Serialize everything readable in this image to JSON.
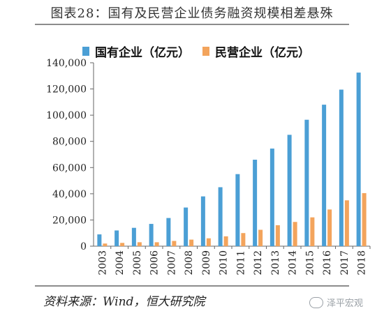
{
  "header": {
    "title": "图表28：国有及民营企业债务融资规模相差悬殊"
  },
  "footer": {
    "source": "资料来源：Wind，恒大研究院",
    "watermark": "泽平宏观"
  },
  "chart_data": {
    "type": "bar",
    "categories": [
      "2003",
      "2004",
      "2005",
      "2006",
      "2007",
      "2008",
      "2009",
      "2010",
      "2011",
      "2012",
      "2013",
      "2014",
      "2015",
      "2016",
      "2017",
      "2018"
    ],
    "series": [
      {
        "name": "国有企业（亿元）",
        "color": "#4b9fd5",
        "values": [
          9000,
          12000,
          14000,
          17000,
          21500,
          29500,
          38000,
          45000,
          55000,
          66000,
          74500,
          85000,
          96500,
          108000,
          119500,
          132500
        ]
      },
      {
        "name": "民营企业（亿元）",
        "color": "#f3a45c",
        "values": [
          2000,
          2500,
          3000,
          3000,
          4000,
          5000,
          6000,
          7500,
          10000,
          12500,
          16000,
          18500,
          22000,
          28000,
          35000,
          40500
        ]
      }
    ],
    "ylim": [
      0,
      140000
    ],
    "yticks": [
      0,
      20000,
      40000,
      60000,
      80000,
      100000,
      120000,
      140000
    ],
    "ytick_labels": [
      "0",
      "20,000",
      "40,000",
      "60,000",
      "80,000",
      "100,000",
      "120,000",
      "140,000"
    ],
    "legend_position": "top",
    "grid": false,
    "title": "",
    "xlabel": "",
    "ylabel": ""
  }
}
